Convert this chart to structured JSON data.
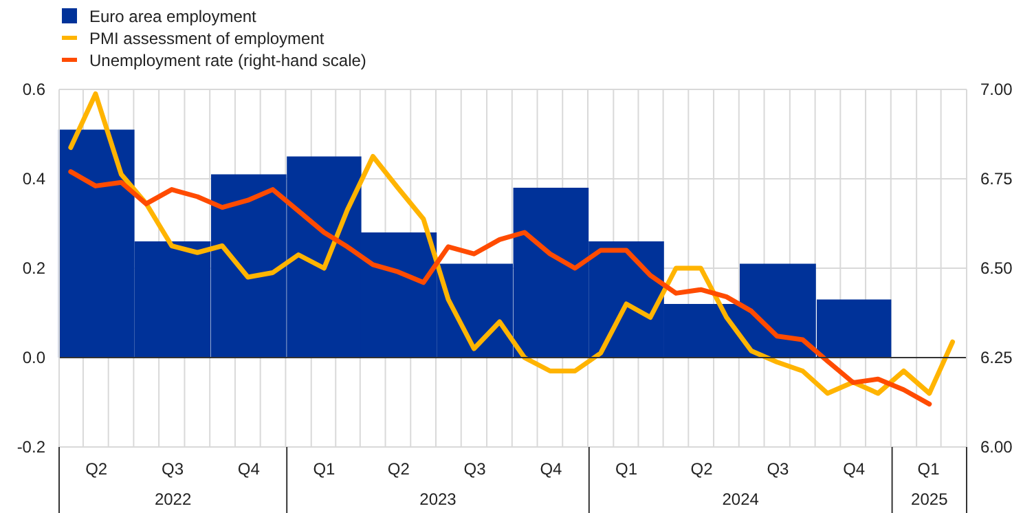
{
  "chart_data": {
    "type": "line",
    "x": [
      "2022-04-15",
      "2022-05-15",
      "2022-06-15",
      "2022-07-15",
      "2022-08-15",
      "2022-09-15",
      "2022-10-15",
      "2022-11-15",
      "2022-12-15",
      "2023-01-15",
      "2023-02-15",
      "2023-03-15",
      "2023-04-15",
      "2023-05-15",
      "2023-06-15",
      "2023-07-15",
      "2023-08-15",
      "2023-09-15",
      "2023-10-15",
      "2023-11-15",
      "2023-12-15",
      "2024-01-15",
      "2024-02-15",
      "2024-03-15",
      "2024-04-15",
      "2024-05-15",
      "2024-06-15",
      "2024-07-15",
      "2024-08-15",
      "2024-09-15",
      "2024-10-15",
      "2024-11-15",
      "2024-12-15",
      "2025-01-15",
      "2025-02-15",
      "2025-03-15"
    ],
    "xlim": [
      "2022-04-01",
      "2025-04-01"
    ],
    "xticks": [
      {
        "value": "2022-04-01",
        "label": null
      },
      {
        "value": "2022-05-16",
        "label": "Q2"
      },
      {
        "value": "2022-08-16",
        "label": "Q3"
      },
      {
        "value": "2022-11-16",
        "label": "Q4"
      },
      {
        "value": "2023-01-01",
        "label": null
      },
      {
        "value": "2023-02-15",
        "label": "Q1"
      },
      {
        "value": "2023-05-16",
        "label": "Q2"
      },
      {
        "value": "2023-08-16",
        "label": "Q3"
      },
      {
        "value": "2023-11-16",
        "label": "Q4"
      },
      {
        "value": "2024-01-01",
        "label": null
      },
      {
        "value": "2024-02-15",
        "label": "Q1"
      },
      {
        "value": "2024-05-16",
        "label": "Q2"
      },
      {
        "value": "2024-08-16",
        "label": "Q3"
      },
      {
        "value": "2024-11-16",
        "label": "Q4"
      },
      {
        "value": "2025-01-01",
        "label": null
      },
      {
        "value": "2025-02-14",
        "label": "Q1"
      },
      {
        "value": "2025-04-01",
        "label": null
      }
    ],
    "ylim": [
      -0.2,
      0.6
    ],
    "yticks": [
      {
        "value": -0.2,
        "label": "-0.2"
      },
      {
        "value": 0,
        "label": "0.0"
      },
      {
        "value": 0.2,
        "label": "0.2"
      },
      {
        "value": 0.4,
        "label": "0.4"
      },
      {
        "value": 0.6,
        "label": "0.6"
      }
    ],
    "y2lim": [
      6.0,
      7.0
    ],
    "y2ticks": [
      {
        "value": 6,
        "label": "6.00"
      },
      {
        "value": 6.25,
        "label": "6.25"
      },
      {
        "value": 6.5,
        "label": "6.50"
      },
      {
        "value": 6.75,
        "label": "6.75"
      },
      {
        "value": 7,
        "label": "7.00"
      }
    ],
    "grid": true,
    "legend": "top left",
    "annotations": [
      "2022",
      "2023",
      "2024",
      "2025"
    ],
    "series": [
      {
        "name": "Euro area employment",
        "type": "bar",
        "color": "#003299",
        "x": [
          "2022-05-16",
          "2022-08-16",
          "2022-11-16",
          "2023-02-15",
          "2023-05-16",
          "2023-08-16",
          "2023-11-16",
          "2024-02-15",
          "2024-05-16",
          "2024-08-16",
          "2024-11-16",
          "2025-02-14"
        ],
        "values": [
          0.51,
          0.26,
          0.41,
          0.45,
          0.28,
          0.21,
          0.38,
          0.26,
          0.12,
          0.21,
          0.13,
          0
        ]
      },
      {
        "name": "PMI assessment of employment",
        "color": "#ffb400",
        "values": [
          0.47,
          0.59,
          0.41,
          0.345,
          0.25,
          0.235,
          0.25,
          0.18,
          0.19,
          0.23,
          0.2,
          0.33,
          0.45,
          0.38,
          0.31,
          0.13,
          0.02,
          0.08,
          0,
          -0.03,
          -0.03,
          0.01,
          0.12,
          0.09,
          0.2,
          0.2,
          0.09,
          0.015,
          -0.01,
          -0.03,
          -0.08,
          -0.055,
          -0.08,
          -0.03,
          -0.08,
          0.035
        ]
      },
      {
        "name": "Unemployment rate (right-hand scale)",
        "color": "#ff4b00",
        "axis": "y2",
        "values": [
          6.77,
          6.73,
          6.74,
          6.68,
          6.72,
          6.7,
          6.67,
          6.69,
          6.72,
          6.66,
          6.6,
          6.56,
          6.51,
          6.49,
          6.46,
          6.56,
          6.54,
          6.58,
          6.6,
          6.54,
          6.5,
          6.55,
          6.55,
          6.48,
          6.43,
          6.44,
          6.42,
          6.38,
          6.31,
          6.3,
          6.24,
          6.18,
          6.19,
          6.16,
          6.12,
          null
        ]
      }
    ]
  }
}
